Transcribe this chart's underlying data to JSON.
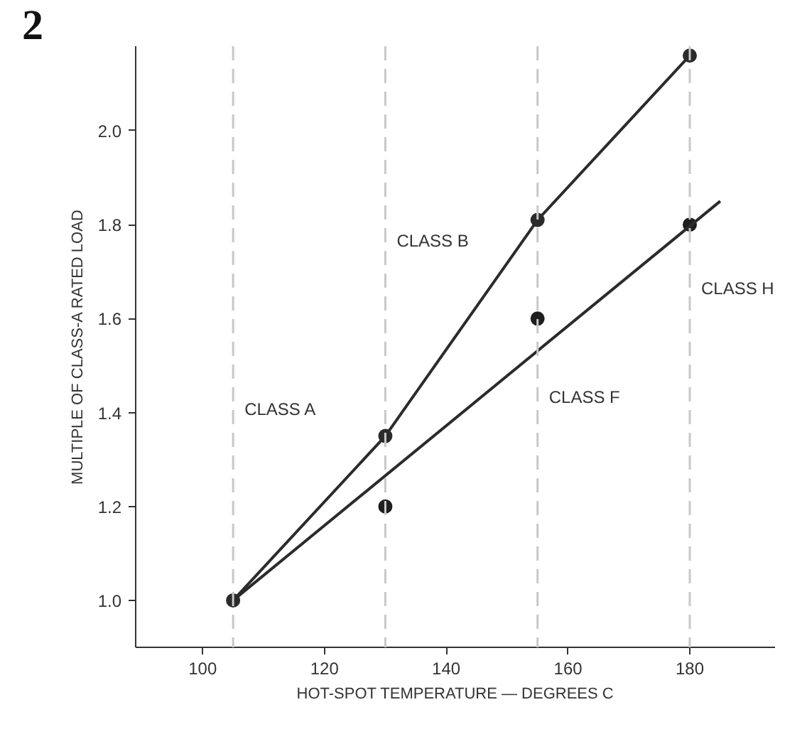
{
  "chart_data": {
    "type": "scatter",
    "xlabel": "HOT-SPOT TEMPERATURE — DEGREES C",
    "ylabel": "MULTIPLE OF CLASS-A RATED LOAD",
    "annotations": [
      "2"
    ],
    "series": [
      {
        "type": "line",
        "color": "#2b2b2b",
        "x": [
          105,
          130,
          155,
          180
        ],
        "values": [
          1.0,
          1.35,
          1.81,
          2.16
        ]
      },
      {
        "color": "#1e1e1e",
        "x": [
          130,
          155,
          180
        ],
        "values": [
          1.2,
          1.6,
          1.8
        ]
      },
      {
        "type": "line",
        "color": "#2b2b2b",
        "marker": "none",
        "x": [
          105,
          185
        ],
        "values": [
          1.0,
          1.85
        ]
      }
    ],
    "ref_lines": [
      {
        "axis": "x",
        "value": 105,
        "label": "CLASS A",
        "color": "#c8c8c8",
        "line_style": "dashed"
      },
      {
        "axis": "x",
        "value": 130,
        "label": "CLASS B",
        "color": "#c8c8c8",
        "line_style": "dashed"
      },
      {
        "axis": "x",
        "value": 155,
        "label": "CLASS F",
        "color": "#c8c8c8",
        "line_style": "dashed"
      },
      {
        "axis": "x",
        "value": 180,
        "label": "CLASS H",
        "color": "#c8c8c8",
        "line_style": "dashed"
      }
    ],
    "marker": "circle",
    "xlim": [
      89,
      194
    ],
    "ylim": [
      0.9,
      2.18
    ],
    "xticks": [
      100,
      120,
      140,
      160,
      180
    ],
    "yticks": [
      {
        "value": 1.0,
        "label": "1.0"
      },
      {
        "value": 1.2,
        "label": "1.2"
      },
      {
        "value": 1.4,
        "label": "1.4"
      },
      {
        "value": 1.6,
        "label": "1.6"
      },
      {
        "value": 1.8,
        "label": "1.8"
      },
      {
        "value": 2.0,
        "label": "2.0"
      }
    ]
  }
}
